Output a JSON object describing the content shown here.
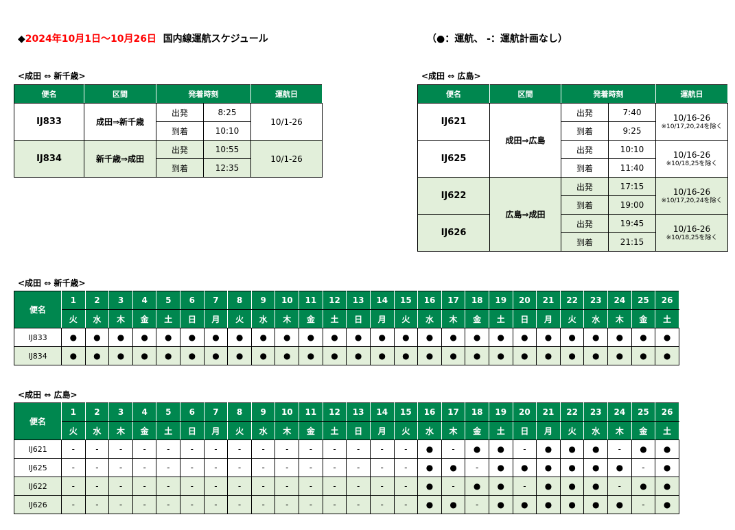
{
  "title": {
    "marker": "◆",
    "period": "2024年10月1日～10月26日",
    "label": "国内線運航スケジュール"
  },
  "legend": "（●：運航、 -：運航計画なし）",
  "colors": {
    "header": "#00874f",
    "alt_row": "#e2efda",
    "accent": "#ff0000"
  },
  "headers": {
    "flight": "便名",
    "section": "区間",
    "times": "発着時刻",
    "days": "運航日",
    "dep": "出発",
    "arr": "到着"
  },
  "chitose": {
    "caption": "<成田 ⇔ 新千歳>",
    "flights": [
      {
        "no": "IJ833",
        "route": "成田⇒新千歳",
        "dep": "8:25",
        "arr": "10:10",
        "days": "10/1-26"
      },
      {
        "no": "IJ834",
        "route": "新千歳⇒成田",
        "dep": "10:55",
        "arr": "12:35",
        "days": "10/1-26"
      }
    ]
  },
  "hiroshima": {
    "caption": "<成田 ⇔ 広島>",
    "routes": [
      "成田⇒広島",
      "広島⇒成田"
    ],
    "flights": [
      {
        "no": "IJ621",
        "dep": "7:40",
        "arr": "9:25",
        "days": "10/16-26",
        "note": "※10/17,20,24を除く"
      },
      {
        "no": "IJ625",
        "dep": "10:10",
        "arr": "11:40",
        "days": "10/16-26",
        "note": "※10/18,25を除く"
      },
      {
        "no": "IJ622",
        "dep": "17:15",
        "arr": "19:00",
        "days": "10/16-26",
        "note": "※10/17,20,24を除く"
      },
      {
        "no": "IJ626",
        "dep": "19:45",
        "arr": "21:15",
        "days": "10/16-26",
        "note": "※10/18,25を除く"
      }
    ]
  },
  "calendar": {
    "dates": [
      "1",
      "2",
      "3",
      "4",
      "5",
      "6",
      "7",
      "8",
      "9",
      "10",
      "11",
      "12",
      "13",
      "14",
      "15",
      "16",
      "17",
      "18",
      "19",
      "20",
      "21",
      "22",
      "23",
      "24",
      "25",
      "26"
    ],
    "weekdays": [
      "火",
      "水",
      "木",
      "金",
      "土",
      "日",
      "月",
      "火",
      "水",
      "木",
      "金",
      "土",
      "日",
      "月",
      "火",
      "水",
      "木",
      "金",
      "土",
      "日",
      "月",
      "火",
      "水",
      "木",
      "金",
      "土"
    ]
  },
  "grid_chitose": {
    "caption": "<成田 ⇔ 新千歳>",
    "rows": [
      {
        "no": "IJ833",
        "marks": [
          "●",
          "●",
          "●",
          "●",
          "●",
          "●",
          "●",
          "●",
          "●",
          "●",
          "●",
          "●",
          "●",
          "●",
          "●",
          "●",
          "●",
          "●",
          "●",
          "●",
          "●",
          "●",
          "●",
          "●",
          "●",
          "●"
        ]
      },
      {
        "no": "IJ834",
        "marks": [
          "●",
          "●",
          "●",
          "●",
          "●",
          "●",
          "●",
          "●",
          "●",
          "●",
          "●",
          "●",
          "●",
          "●",
          "●",
          "●",
          "●",
          "●",
          "●",
          "●",
          "●",
          "●",
          "●",
          "●",
          "●",
          "●"
        ]
      }
    ]
  },
  "grid_hiroshima": {
    "caption": "<成田 ⇔ 広島>",
    "rows": [
      {
        "no": "IJ621",
        "marks": [
          "-",
          "-",
          "-",
          "-",
          "-",
          "-",
          "-",
          "-",
          "-",
          "-",
          "-",
          "-",
          "-",
          "-",
          "-",
          "●",
          "-",
          "●",
          "●",
          "-",
          "●",
          "●",
          "●",
          "-",
          "●",
          "●"
        ]
      },
      {
        "no": "IJ625",
        "marks": [
          "-",
          "-",
          "-",
          "-",
          "-",
          "-",
          "-",
          "-",
          "-",
          "-",
          "-",
          "-",
          "-",
          "-",
          "-",
          "●",
          "●",
          "-",
          "●",
          "●",
          "●",
          "●",
          "●",
          "●",
          "-",
          "●"
        ]
      },
      {
        "no": "IJ622",
        "marks": [
          "-",
          "-",
          "-",
          "-",
          "-",
          "-",
          "-",
          "-",
          "-",
          "-",
          "-",
          "-",
          "-",
          "-",
          "-",
          "●",
          "-",
          "●",
          "●",
          "-",
          "●",
          "●",
          "●",
          "-",
          "●",
          "●"
        ]
      },
      {
        "no": "IJ626",
        "marks": [
          "-",
          "-",
          "-",
          "-",
          "-",
          "-",
          "-",
          "-",
          "-",
          "-",
          "-",
          "-",
          "-",
          "-",
          "-",
          "●",
          "●",
          "-",
          "●",
          "●",
          "●",
          "●",
          "●",
          "●",
          "-",
          "●"
        ]
      }
    ]
  }
}
